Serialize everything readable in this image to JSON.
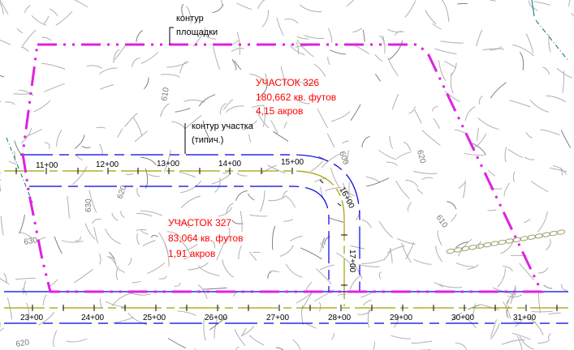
{
  "colors": {
    "boundary": "#e020e0",
    "road_edge": "#0000e0",
    "centerline": "#a0a000",
    "contour": "#b0b0b0",
    "label_red": "#ff0000",
    "fence": "#a0a070",
    "teal": "#007070"
  },
  "annotations": {
    "site_contour": [
      "контур",
      "площадки"
    ],
    "lot_contour": [
      "контур участка",
      "(типич.)"
    ]
  },
  "lots": [
    {
      "name": "УЧАСТОК 326",
      "area_sqft": "180,662 кв. футов",
      "area_acres": "4,15 акров"
    },
    {
      "name": "УЧАСТОК 327",
      "area_sqft": "83,064 кв. футов",
      "area_acres": "1,91 акров"
    }
  ],
  "upper_road_stations": [
    "11+00",
    "12+00",
    "13+00",
    "14+00",
    "15+00",
    "16+00",
    "17+00"
  ],
  "lower_road_stations": [
    "23+00",
    "24+00",
    "25+00",
    "26+00",
    "27+00",
    "28+00",
    "29+00",
    "30+00",
    "31+00"
  ],
  "contour_labels": [
    "610",
    "600",
    "620",
    "610",
    "630",
    "620",
    "630",
    "620"
  ]
}
